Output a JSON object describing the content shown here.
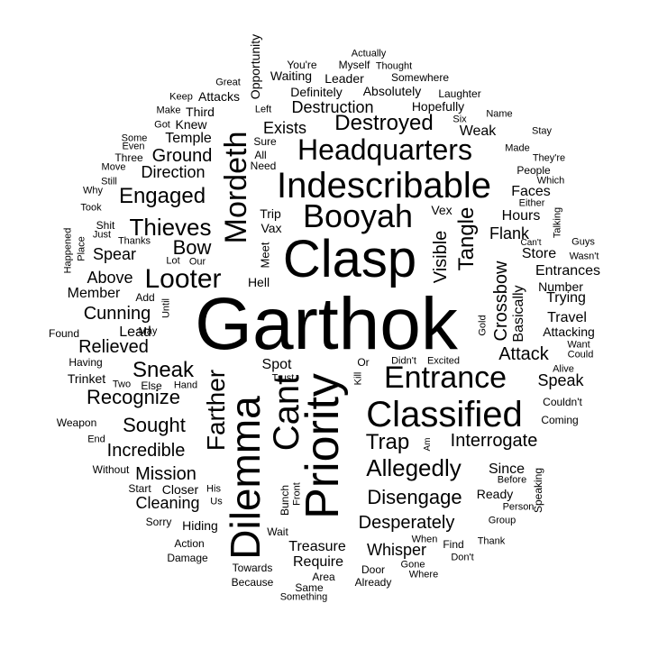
{
  "colors": {
    "background": "#ffffff",
    "text": "#000000"
  },
  "words": [
    {
      "text": "Garthok",
      "vertical": false
    },
    {
      "text": "Clasp",
      "vertical": false
    },
    {
      "text": "Priority",
      "vertical": true
    },
    {
      "text": "Dilemma",
      "vertical": true
    },
    {
      "text": "Indescribable",
      "vertical": false
    },
    {
      "text": "Classified",
      "vertical": false
    },
    {
      "text": "Booyah",
      "vertical": false
    },
    {
      "text": "Headquarters",
      "vertical": false
    },
    {
      "text": "Entrance",
      "vertical": false
    },
    {
      "text": "Cant",
      "vertical": true
    },
    {
      "text": "Mordeth",
      "vertical": true
    },
    {
      "text": "Destroyed",
      "vertical": false
    },
    {
      "text": "Looter",
      "vertical": false
    },
    {
      "text": "Farther",
      "vertical": true
    },
    {
      "text": "Allegedly",
      "vertical": false
    },
    {
      "text": "Thieves",
      "vertical": false
    },
    {
      "text": "Engaged",
      "vertical": false
    },
    {
      "text": "Trap",
      "vertical": false
    },
    {
      "text": "Tangle",
      "vertical": true
    },
    {
      "text": "Sneak",
      "vertical": false
    },
    {
      "text": "Recognize",
      "vertical": false
    },
    {
      "text": "Sought",
      "vertical": false
    },
    {
      "text": "Interrogate",
      "vertical": false
    },
    {
      "text": "Disengage",
      "vertical": false
    },
    {
      "text": "Mission",
      "vertical": false
    },
    {
      "text": "Incredible",
      "vertical": false
    },
    {
      "text": "Crossbow",
      "vertical": true
    },
    {
      "text": "Cunning",
      "vertical": false
    },
    {
      "text": "Relieved",
      "vertical": false
    },
    {
      "text": "Desperately",
      "vertical": false
    },
    {
      "text": "Bow",
      "vertical": false
    },
    {
      "text": "Attack",
      "vertical": false
    },
    {
      "text": "Visible",
      "vertical": true
    },
    {
      "text": "Ground",
      "vertical": false
    },
    {
      "text": "Destruction",
      "vertical": false
    },
    {
      "text": "Exists",
      "vertical": false
    },
    {
      "text": "Flank",
      "vertical": false
    },
    {
      "text": "Treasure",
      "vertical": false
    },
    {
      "text": "Require",
      "vertical": false
    },
    {
      "text": "Cleaning",
      "vertical": false
    },
    {
      "text": "Whisper",
      "vertical": false
    },
    {
      "text": "Speak",
      "vertical": false
    },
    {
      "text": "Direction",
      "vertical": false
    },
    {
      "text": "Spear",
      "vertical": false
    },
    {
      "text": "Above",
      "vertical": false
    },
    {
      "text": "Member",
      "vertical": false
    },
    {
      "text": "Store",
      "vertical": false
    },
    {
      "text": "Hours",
      "vertical": false
    },
    {
      "text": "Entrances",
      "vertical": false
    },
    {
      "text": "Trying",
      "vertical": false
    },
    {
      "text": "Faces",
      "vertical": false
    },
    {
      "text": "Weak",
      "vertical": false
    },
    {
      "text": "Temple",
      "vertical": false
    },
    {
      "text": "Hopefully",
      "vertical": false
    },
    {
      "text": "Absolutely",
      "vertical": false
    },
    {
      "text": "Leader",
      "vertical": false
    },
    {
      "text": "Definitely",
      "vertical": false
    },
    {
      "text": "Waiting",
      "vertical": false
    },
    {
      "text": "Lead",
      "vertical": false
    },
    {
      "text": "Trinket",
      "vertical": false
    },
    {
      "text": "Spot",
      "vertical": false
    },
    {
      "text": "Basically",
      "vertical": true
    },
    {
      "text": "Hiding",
      "vertical": false
    },
    {
      "text": "Since",
      "vertical": false
    },
    {
      "text": "Ready",
      "vertical": false
    },
    {
      "text": "Travel",
      "vertical": false
    },
    {
      "text": "Attacking",
      "vertical": false
    },
    {
      "text": "Number",
      "vertical": false
    },
    {
      "text": "Opportunity",
      "vertical": true
    },
    {
      "text": "Third",
      "vertical": false
    },
    {
      "text": "Attacks",
      "vertical": false
    },
    {
      "text": "Knew",
      "vertical": false
    },
    {
      "text": "Trip",
      "vertical": false
    },
    {
      "text": "Vax",
      "vertical": false
    },
    {
      "text": "Vex",
      "vertical": false
    },
    {
      "text": "Hell",
      "vertical": false
    },
    {
      "text": "Meet",
      "vertical": true
    },
    {
      "text": "Sure",
      "vertical": false
    },
    {
      "text": "All",
      "vertical": false
    },
    {
      "text": "Need",
      "vertical": false
    },
    {
      "text": "Left",
      "vertical": false
    },
    {
      "text": "You're",
      "vertical": false
    },
    {
      "text": "Myself",
      "vertical": false
    },
    {
      "text": "Thought",
      "vertical": false
    },
    {
      "text": "Actually",
      "vertical": false
    },
    {
      "text": "Somewhere",
      "vertical": false
    },
    {
      "text": "Great",
      "vertical": false
    },
    {
      "text": "Keep",
      "vertical": false
    },
    {
      "text": "Make",
      "vertical": false
    },
    {
      "text": "Got",
      "vertical": false
    },
    {
      "text": "Some",
      "vertical": false
    },
    {
      "text": "Even",
      "vertical": false
    },
    {
      "text": "Three",
      "vertical": false
    },
    {
      "text": "Move",
      "vertical": false
    },
    {
      "text": "Still",
      "vertical": false
    },
    {
      "text": "Why",
      "vertical": false
    },
    {
      "text": "Took",
      "vertical": false
    },
    {
      "text": "Shit",
      "vertical": false
    },
    {
      "text": "Just",
      "vertical": false
    },
    {
      "text": "Happened",
      "vertical": true
    },
    {
      "text": "Place",
      "vertical": true
    },
    {
      "text": "Thanks",
      "vertical": false
    },
    {
      "text": "Lot",
      "vertical": false
    },
    {
      "text": "Our",
      "vertical": false
    },
    {
      "text": "Add",
      "vertical": false
    },
    {
      "text": "Until",
      "vertical": true
    },
    {
      "text": "Found",
      "vertical": false
    },
    {
      "text": "May",
      "vertical": false
    },
    {
      "text": "Having",
      "vertical": false
    },
    {
      "text": "Two",
      "vertical": false
    },
    {
      "text": "Else",
      "vertical": false
    },
    {
      "text": "Hand",
      "vertical": false
    },
    {
      "text": "Trust",
      "vertical": false
    },
    {
      "text": "Or",
      "vertical": false
    },
    {
      "text": "Kill",
      "vertical": true
    },
    {
      "text": "Didn't",
      "vertical": false
    },
    {
      "text": "Excited",
      "vertical": false
    },
    {
      "text": "Gold",
      "vertical": true
    },
    {
      "text": "Weapon",
      "vertical": false
    },
    {
      "text": "End",
      "vertical": false
    },
    {
      "text": "Without",
      "vertical": false
    },
    {
      "text": "Start",
      "vertical": false
    },
    {
      "text": "Closer",
      "vertical": false
    },
    {
      "text": "His",
      "vertical": false
    },
    {
      "text": "Us",
      "vertical": false
    },
    {
      "text": "Sorry",
      "vertical": false
    },
    {
      "text": "Action",
      "vertical": false
    },
    {
      "text": "Damage",
      "vertical": false
    },
    {
      "text": "Towards",
      "vertical": false
    },
    {
      "text": "Because",
      "vertical": false
    },
    {
      "text": "Bunch",
      "vertical": true
    },
    {
      "text": "Front",
      "vertical": true
    },
    {
      "text": "Wait",
      "vertical": false
    },
    {
      "text": "Area",
      "vertical": false
    },
    {
      "text": "Same",
      "vertical": false
    },
    {
      "text": "Something",
      "vertical": false
    },
    {
      "text": "Door",
      "vertical": false
    },
    {
      "text": "Already",
      "vertical": false
    },
    {
      "text": "Gone",
      "vertical": false
    },
    {
      "text": "Where",
      "vertical": false
    },
    {
      "text": "When",
      "vertical": false
    },
    {
      "text": "Find",
      "vertical": false
    },
    {
      "text": "Don't",
      "vertical": false
    },
    {
      "text": "Thank",
      "vertical": false
    },
    {
      "text": "Am",
      "vertical": true
    },
    {
      "text": "Before",
      "vertical": false
    },
    {
      "text": "Person",
      "vertical": false
    },
    {
      "text": "Group",
      "vertical": false
    },
    {
      "text": "Speaking",
      "vertical": true
    },
    {
      "text": "Coming",
      "vertical": false
    },
    {
      "text": "Couldn't",
      "vertical": false
    },
    {
      "text": "Alive",
      "vertical": false
    },
    {
      "text": "Could",
      "vertical": false
    },
    {
      "text": "Want",
      "vertical": false
    },
    {
      "text": "Wasn't",
      "vertical": false
    },
    {
      "text": "Guys",
      "vertical": false
    },
    {
      "text": "Can't",
      "vertical": false
    },
    {
      "text": "Talking",
      "vertical": true
    },
    {
      "text": "Either",
      "vertical": false
    },
    {
      "text": "Which",
      "vertical": false
    },
    {
      "text": "People",
      "vertical": false
    },
    {
      "text": "They're",
      "vertical": false
    },
    {
      "text": "Made",
      "vertical": false
    },
    {
      "text": "Stay",
      "vertical": false
    },
    {
      "text": "Name",
      "vertical": false
    },
    {
      "text": "Six",
      "vertical": false
    },
    {
      "text": "Laughter",
      "vertical": false
    }
  ]
}
